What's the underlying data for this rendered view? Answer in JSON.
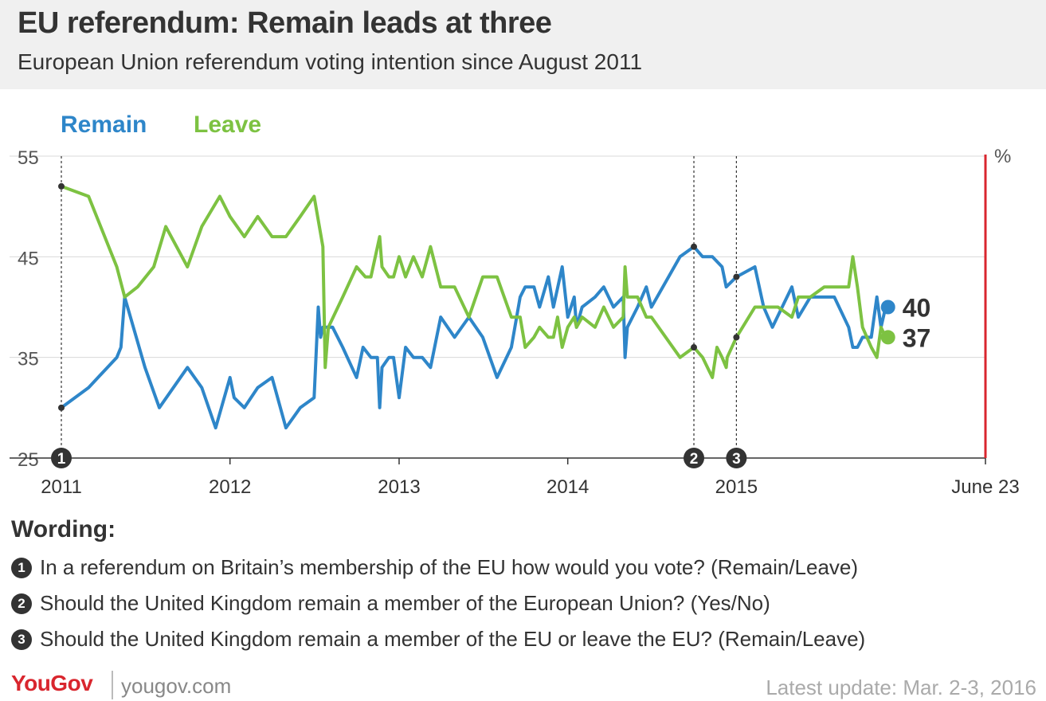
{
  "header": {
    "title": "EU referendum: Remain leads at three",
    "subtitle": "European Union referendum voting intention since August 2011"
  },
  "colors": {
    "remain": "#2e86c9",
    "leave": "#7dc242",
    "marker_line": "#d9262e",
    "grid": "#d8d8d8",
    "text": "#333333"
  },
  "chart_data": {
    "type": "line",
    "unit_label": "%",
    "ylim": [
      25,
      55
    ],
    "y_ticks": [
      25,
      35,
      45,
      55
    ],
    "xlim": [
      "2011-01-01",
      "2016-06-23"
    ],
    "x_ticks": [
      {
        "x": "2011-01-01",
        "label": "2011"
      },
      {
        "x": "2012-01-01",
        "label": "2012"
      },
      {
        "x": "2013-01-01",
        "label": "2013"
      },
      {
        "x": "2014-01-01",
        "label": "2014"
      },
      {
        "x": "2015-01-01",
        "label": "2015"
      },
      {
        "x": "2016-06-23",
        "label": "June 23"
      }
    ],
    "grid": "horizontal",
    "legend_position": "top-left",
    "wording_markers": [
      {
        "x": "2011-01-01",
        "label": "1"
      },
      {
        "x": "2014-10-01",
        "label": "2"
      },
      {
        "x": "2015-01-01",
        "label": "3"
      }
    ],
    "series": [
      {
        "name": "Remain",
        "final_label": "40",
        "points": [
          [
            "2011-01-01",
            30
          ],
          [
            "2011-03-01",
            32
          ],
          [
            "2011-05-01",
            35
          ],
          [
            "2011-05-10",
            36
          ],
          [
            "2011-05-18",
            41
          ],
          [
            "2011-07-01",
            34
          ],
          [
            "2011-08-01",
            30
          ],
          [
            "2011-10-01",
            34
          ],
          [
            "2011-11-01",
            32
          ],
          [
            "2011-12-01",
            28
          ],
          [
            "2012-01-01",
            33
          ],
          [
            "2012-01-10",
            31
          ],
          [
            "2012-02-01",
            30
          ],
          [
            "2012-03-01",
            32
          ],
          [
            "2012-04-01",
            33
          ],
          [
            "2012-05-01",
            28
          ],
          [
            "2012-06-01",
            30
          ],
          [
            "2012-07-01",
            31
          ],
          [
            "2012-07-10",
            40
          ],
          [
            "2012-07-15",
            37
          ],
          [
            "2012-07-20",
            38
          ],
          [
            "2012-08-10",
            38
          ],
          [
            "2012-09-01",
            36
          ],
          [
            "2012-10-01",
            33
          ],
          [
            "2012-10-15",
            36
          ],
          [
            "2012-11-01",
            35
          ],
          [
            "2012-11-15",
            35
          ],
          [
            "2012-11-20",
            30
          ],
          [
            "2012-11-25",
            34
          ],
          [
            "2012-12-10",
            35
          ],
          [
            "2012-12-20",
            35
          ],
          [
            "2013-01-01",
            31
          ],
          [
            "2013-01-15",
            36
          ],
          [
            "2013-02-01",
            35
          ],
          [
            "2013-02-20",
            35
          ],
          [
            "2013-03-10",
            34
          ],
          [
            "2013-04-01",
            39
          ],
          [
            "2013-05-01",
            37
          ],
          [
            "2013-06-01",
            39
          ],
          [
            "2013-07-01",
            37
          ],
          [
            "2013-08-01",
            33
          ],
          [
            "2013-09-01",
            36
          ],
          [
            "2013-09-20",
            41
          ],
          [
            "2013-10-01",
            42
          ],
          [
            "2013-10-20",
            42
          ],
          [
            "2013-11-01",
            40
          ],
          [
            "2013-11-20",
            43
          ],
          [
            "2013-12-01",
            40
          ],
          [
            "2013-12-20",
            44
          ],
          [
            "2014-01-01",
            39
          ],
          [
            "2014-01-15",
            41
          ],
          [
            "2014-01-20",
            38
          ],
          [
            "2014-02-01",
            40
          ],
          [
            "2014-03-01",
            41
          ],
          [
            "2014-03-20",
            42
          ],
          [
            "2014-04-10",
            40
          ],
          [
            "2014-05-01",
            41
          ],
          [
            "2014-05-05",
            35
          ],
          [
            "2014-05-10",
            38
          ],
          [
            "2014-06-01",
            40
          ],
          [
            "2014-06-20",
            42
          ],
          [
            "2014-07-01",
            40
          ],
          [
            "2014-09-01",
            45
          ],
          [
            "2014-10-01",
            46
          ],
          [
            "2014-10-20",
            45
          ],
          [
            "2014-11-10",
            45
          ],
          [
            "2014-12-01",
            44
          ],
          [
            "2014-12-10",
            42
          ],
          [
            "2015-01-01",
            43
          ],
          [
            "2015-02-10",
            44
          ],
          [
            "2015-03-01",
            40
          ],
          [
            "2015-03-20",
            38
          ],
          [
            "2015-05-01",
            42
          ],
          [
            "2015-05-15",
            39
          ],
          [
            "2015-06-10",
            41
          ],
          [
            "2015-07-10",
            41
          ],
          [
            "2015-08-01",
            41
          ],
          [
            "2015-09-01",
            38
          ],
          [
            "2015-09-10",
            36
          ],
          [
            "2015-09-20",
            36
          ],
          [
            "2015-10-01",
            37
          ],
          [
            "2015-10-20",
            37
          ],
          [
            "2015-11-01",
            41
          ],
          [
            "2015-11-10",
            38
          ],
          [
            "2015-11-20",
            40
          ]
        ]
      },
      {
        "name": "Leave",
        "final_label": "37",
        "points": [
          [
            "2011-01-01",
            52
          ],
          [
            "2011-03-01",
            51
          ],
          [
            "2011-05-01",
            44
          ],
          [
            "2011-05-18",
            41
          ],
          [
            "2011-06-15",
            42
          ],
          [
            "2011-07-20",
            44
          ],
          [
            "2011-08-15",
            48
          ],
          [
            "2011-10-01",
            44
          ],
          [
            "2011-11-01",
            48
          ],
          [
            "2011-12-10",
            51
          ],
          [
            "2012-01-01",
            49
          ],
          [
            "2012-02-01",
            47
          ],
          [
            "2012-03-01",
            49
          ],
          [
            "2012-04-01",
            47
          ],
          [
            "2012-05-01",
            47
          ],
          [
            "2012-06-01",
            49
          ],
          [
            "2012-07-01",
            51
          ],
          [
            "2012-07-20",
            46
          ],
          [
            "2012-07-25",
            34
          ],
          [
            "2012-08-01",
            38
          ],
          [
            "2012-09-01",
            41
          ],
          [
            "2012-10-01",
            44
          ],
          [
            "2012-10-20",
            43
          ],
          [
            "2012-11-01",
            43
          ],
          [
            "2012-11-20",
            47
          ],
          [
            "2012-11-25",
            44
          ],
          [
            "2012-12-10",
            43
          ],
          [
            "2012-12-20",
            43
          ],
          [
            "2013-01-01",
            45
          ],
          [
            "2013-01-15",
            43
          ],
          [
            "2013-02-01",
            45
          ],
          [
            "2013-02-20",
            43
          ],
          [
            "2013-03-10",
            46
          ],
          [
            "2013-04-01",
            42
          ],
          [
            "2013-05-01",
            42
          ],
          [
            "2013-06-01",
            39
          ],
          [
            "2013-07-01",
            43
          ],
          [
            "2013-08-01",
            43
          ],
          [
            "2013-09-01",
            39
          ],
          [
            "2013-09-20",
            39
          ],
          [
            "2013-10-01",
            36
          ],
          [
            "2013-10-20",
            37
          ],
          [
            "2013-11-01",
            38
          ],
          [
            "2013-11-20",
            37
          ],
          [
            "2013-12-01",
            37
          ],
          [
            "2013-12-10",
            39
          ],
          [
            "2013-12-20",
            36
          ],
          [
            "2014-01-01",
            38
          ],
          [
            "2014-01-15",
            39
          ],
          [
            "2014-01-20",
            38
          ],
          [
            "2014-02-01",
            39
          ],
          [
            "2014-03-01",
            38
          ],
          [
            "2014-03-20",
            40
          ],
          [
            "2014-04-10",
            38
          ],
          [
            "2014-05-01",
            39
          ],
          [
            "2014-05-05",
            44
          ],
          [
            "2014-05-10",
            41
          ],
          [
            "2014-06-01",
            41
          ],
          [
            "2014-06-20",
            39
          ],
          [
            "2014-07-01",
            39
          ],
          [
            "2014-09-01",
            35
          ],
          [
            "2014-10-01",
            36
          ],
          [
            "2014-10-20",
            35
          ],
          [
            "2014-11-10",
            33
          ],
          [
            "2014-11-20",
            36
          ],
          [
            "2014-12-01",
            35
          ],
          [
            "2014-12-10",
            34
          ],
          [
            "2014-12-12",
            35
          ],
          [
            "2015-01-01",
            37
          ],
          [
            "2015-02-10",
            40
          ],
          [
            "2015-03-01",
            40
          ],
          [
            "2015-04-01",
            40
          ],
          [
            "2015-05-01",
            39
          ],
          [
            "2015-05-15",
            41
          ],
          [
            "2015-06-10",
            41
          ],
          [
            "2015-07-10",
            42
          ],
          [
            "2015-08-01",
            42
          ],
          [
            "2015-09-01",
            42
          ],
          [
            "2015-09-10",
            45
          ],
          [
            "2015-09-20",
            42
          ],
          [
            "2015-10-01",
            38
          ],
          [
            "2015-10-20",
            36
          ],
          [
            "2015-11-01",
            35
          ],
          [
            "2015-11-10",
            38
          ],
          [
            "2015-11-20",
            37
          ]
        ]
      }
    ]
  },
  "wording": {
    "title": "Wording:",
    "items": [
      {
        "num": "1",
        "text": "In a referendum on Britain’s membership of the EU how would you vote? (Remain/Leave)"
      },
      {
        "num": "2",
        "text": "Should the United Kingdom remain a member of the European Union? (Yes/No)"
      },
      {
        "num": "3",
        "text": "Should the United Kingdom remain a member of the EU or leave the EU? (Remain/Leave)"
      }
    ]
  },
  "footer": {
    "logo": "YouGov",
    "site": "yougov.com",
    "update": "Latest update: Mar. 2-3, 2016"
  }
}
